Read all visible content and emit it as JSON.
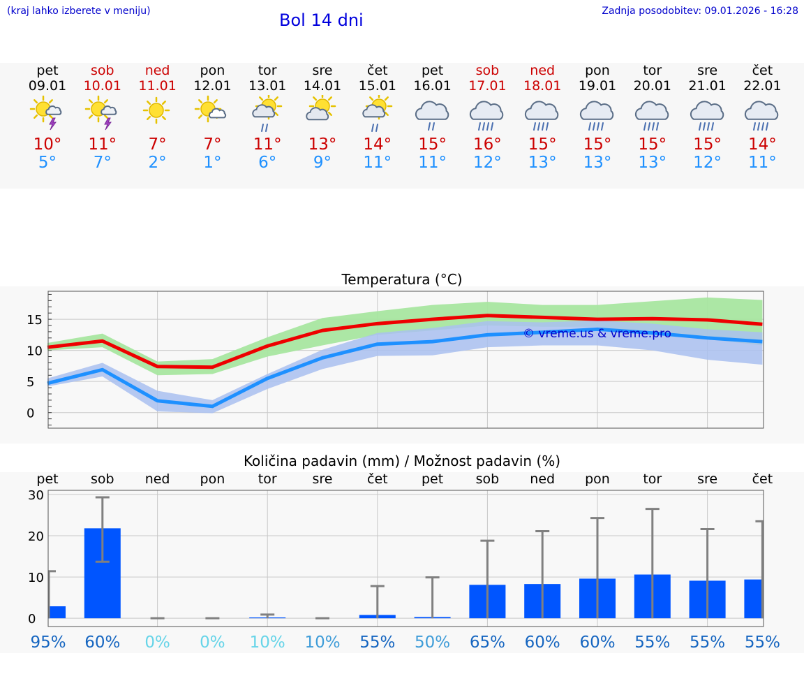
{
  "header": {
    "hint": "(kraj lahko izberete v meniju)",
    "title": "Bol 14 dni",
    "updated": "Zadnja posodobitev: 09.01.2026 - 16:28"
  },
  "days": [
    {
      "name": "pet",
      "date": "09.01",
      "icon": "sun-thunder-icon",
      "max": "10°",
      "min": "5°",
      "weekend": false
    },
    {
      "name": "sob",
      "date": "10.01",
      "icon": "sun-thunder-icon",
      "max": "11°",
      "min": "7°",
      "weekend": true
    },
    {
      "name": "ned",
      "date": "11.01",
      "icon": "sun-icon",
      "max": "7°",
      "min": "2°",
      "weekend": true
    },
    {
      "name": "pon",
      "date": "12.01",
      "icon": "sun-small-cloud-icon",
      "max": "7°",
      "min": "1°",
      "weekend": false
    },
    {
      "name": "tor",
      "date": "13.01",
      "icon": "sun-cloud-rain-icon",
      "max": "11°",
      "min": "6°",
      "weekend": false
    },
    {
      "name": "sre",
      "date": "14.01",
      "icon": "sun-cloud-icon",
      "max": "13°",
      "min": "9°",
      "weekend": false
    },
    {
      "name": "čet",
      "date": "15.01",
      "icon": "sun-cloud-rain-icon",
      "max": "14°",
      "min": "11°",
      "weekend": false
    },
    {
      "name": "pet",
      "date": "16.01",
      "icon": "cloud-rain-icon",
      "max": "15°",
      "min": "11°",
      "weekend": false
    },
    {
      "name": "sob",
      "date": "17.01",
      "icon": "cloud-heavy-rain-icon",
      "max": "16°",
      "min": "12°",
      "weekend": true
    },
    {
      "name": "ned",
      "date": "18.01",
      "icon": "cloud-heavy-rain-icon",
      "max": "15°",
      "min": "13°",
      "weekend": true
    },
    {
      "name": "pon",
      "date": "19.01",
      "icon": "cloud-heavy-rain-icon",
      "max": "15°",
      "min": "13°",
      "weekend": false
    },
    {
      "name": "tor",
      "date": "20.01",
      "icon": "cloud-heavy-rain-icon",
      "max": "15°",
      "min": "13°",
      "weekend": false
    },
    {
      "name": "sre",
      "date": "21.01",
      "icon": "cloud-heavy-rain-icon",
      "max": "15°",
      "min": "12°",
      "weekend": false
    },
    {
      "name": "čet",
      "date": "22.01",
      "icon": "cloud-heavy-rain-icon",
      "max": "14°",
      "min": "11°",
      "weekend": false
    }
  ],
  "colors": {
    "max_line": "#ee0000",
    "min_line": "#1e90ff",
    "max_band": "#a8e6a0",
    "min_band": "#a9bff0",
    "bar": "#0055ff",
    "error": "#808080",
    "watermark": "#0000cc"
  },
  "chart_data": [
    {
      "type": "line",
      "title": "Temperatura (°C)",
      "watermark": "© vreme.us & vreme.pro",
      "ylim": [
        -2.5,
        19.5
      ],
      "yticks": [
        0,
        5,
        10,
        15
      ],
      "x": [
        0,
        1,
        2,
        3,
        4,
        5,
        6,
        7,
        8,
        9,
        10,
        11,
        12,
        13
      ],
      "series": [
        {
          "name": "max",
          "values": [
            10.5,
            11.5,
            7.4,
            7.3,
            10.7,
            13.2,
            14.3,
            15.0,
            15.6,
            15.3,
            15.0,
            15.1,
            14.9,
            14.2
          ],
          "band_low": [
            10.0,
            10.5,
            6.0,
            6.2,
            9.0,
            10.8,
            12.5,
            13.2,
            14.0,
            13.8,
            13.8,
            12.8,
            11.8,
            10.8
          ],
          "band_high": [
            11.2,
            12.7,
            8.2,
            8.6,
            12.1,
            15.2,
            16.3,
            17.3,
            17.8,
            17.3,
            17.3,
            17.9,
            18.5,
            18.1
          ]
        },
        {
          "name": "min",
          "values": [
            4.7,
            6.9,
            1.9,
            1.0,
            5.5,
            8.8,
            11.0,
            11.4,
            12.5,
            12.9,
            13.4,
            12.8,
            12.0,
            11.4
          ],
          "band_low": [
            4.2,
            5.8,
            0.2,
            -0.1,
            3.8,
            7.0,
            9.1,
            9.2,
            10.5,
            10.8,
            10.8,
            10.0,
            8.5,
            7.7
          ],
          "band_high": [
            5.5,
            8.0,
            3.5,
            2.0,
            6.2,
            10.1,
            12.8,
            13.6,
            14.7,
            14.5,
            14.8,
            14.3,
            13.4,
            12.9
          ]
        }
      ]
    },
    {
      "type": "bar",
      "title": "Količina padavin (mm) / Možnost padavin (%)",
      "categories": [
        "pet",
        "sob",
        "ned",
        "pon",
        "tor",
        "sre",
        "čet",
        "pet",
        "sob",
        "ned",
        "pon",
        "tor",
        "sre",
        "čet"
      ],
      "ylim": [
        -2,
        31
      ],
      "yticks": [
        0,
        10,
        20,
        30
      ],
      "values": [
        2.9,
        21.8,
        0.0,
        0.0,
        0.2,
        0.0,
        0.8,
        0.3,
        8.1,
        8.3,
        9.6,
        10.6,
        9.1,
        9.4
      ],
      "error_high": [
        11.4,
        29.3,
        0.0,
        0.0,
        0.9,
        0.0,
        7.8,
        9.9,
        18.8,
        21.1,
        24.3,
        26.5,
        21.6,
        23.5
      ],
      "error_low": [
        0.0,
        13.7,
        0.0,
        0.0,
        0.0,
        0.0,
        0.0,
        0.0,
        0.0,
        0.0,
        0.0,
        0.0,
        0.0,
        0.0
      ],
      "probabilities": [
        "95%",
        "60%",
        "0%",
        "0%",
        "10%",
        "10%",
        "55%",
        "50%",
        "65%",
        "60%",
        "60%",
        "55%",
        "55%",
        "55%"
      ],
      "probability_colors": [
        "#1565c0",
        "#1565c0",
        "#66d4e8",
        "#66d4e8",
        "#66d4e8",
        "#3e9cd8",
        "#1565c0",
        "#3e9cd8",
        "#1565c0",
        "#1565c0",
        "#1565c0",
        "#1565c0",
        "#1565c0",
        "#1565c0"
      ]
    }
  ]
}
